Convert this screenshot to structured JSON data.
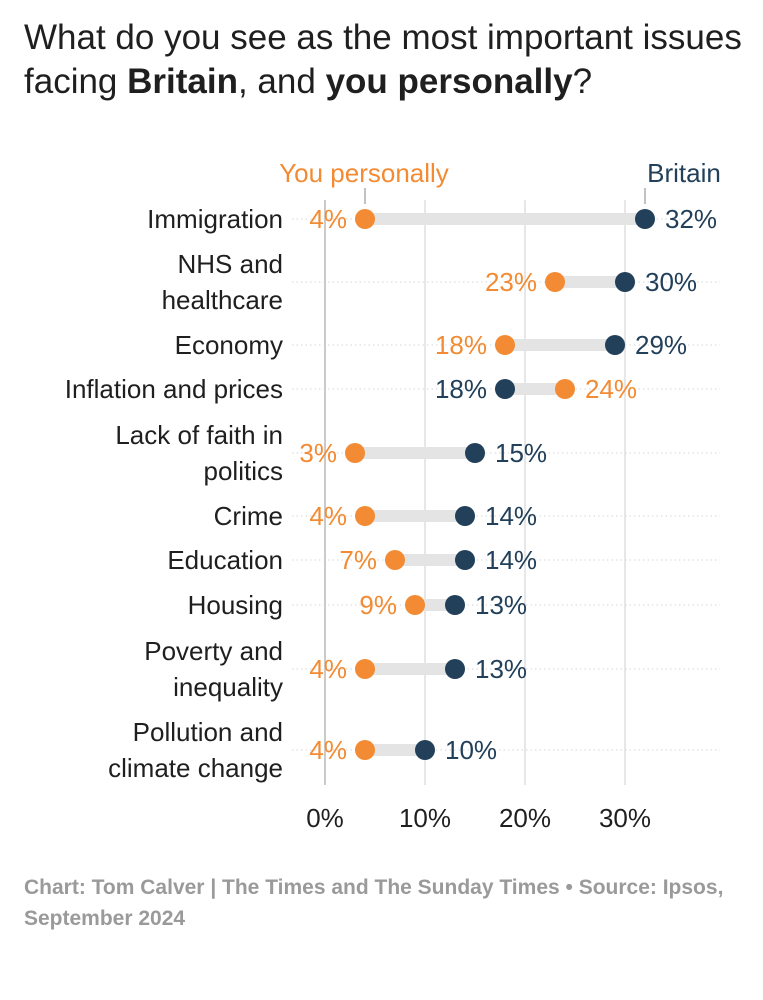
{
  "title": {
    "part1": "What do you see as the most important issues facing ",
    "britain": "Britain",
    "part2": ", and ",
    "personally": "you personally",
    "part3": "?"
  },
  "footer": "Chart: Tom Calver | The Times and The Sunday Times • Source: Ipsos, September 2024",
  "colors": {
    "personal": "#f28b33",
    "britain": "#22405a",
    "bar": "#e4e4e4",
    "grid": "#cfcfcf"
  },
  "chart_data": {
    "type": "dot-range",
    "title": "What do you see as the most important issues facing Britain, and you personally?",
    "xlim": [
      0,
      35
    ],
    "xticks": [
      0,
      10,
      20,
      30
    ],
    "xtick_labels": [
      "0%",
      "10%",
      "20%",
      "30%"
    ],
    "legend": {
      "personal": "You personally",
      "britain": "Britain"
    },
    "categories": [
      [
        "Immigration"
      ],
      [
        "NHS and",
        "healthcare"
      ],
      [
        "Economy"
      ],
      [
        "Inflation and prices"
      ],
      [
        "Lack of faith in",
        "politics"
      ],
      [
        "Crime"
      ],
      [
        "Education"
      ],
      [
        "Housing"
      ],
      [
        "Poverty and",
        "inequality"
      ],
      [
        "Pollution and",
        "climate change"
      ]
    ],
    "series": [
      {
        "name": "You personally",
        "values": [
          4,
          23,
          18,
          24,
          3,
          4,
          7,
          9,
          4,
          4
        ]
      },
      {
        "name": "Britain",
        "values": [
          32,
          30,
          29,
          18,
          15,
          14,
          14,
          13,
          13,
          10
        ]
      }
    ],
    "value_labels": {
      "personal": [
        "4%",
        "23%",
        "18%",
        "24%",
        "3%",
        "4%",
        "7%",
        "9%",
        "4%",
        "4%"
      ],
      "britain": [
        "32%",
        "30%",
        "29%",
        "18%",
        "15%",
        "14%",
        "14%",
        "13%",
        "13%",
        "10%"
      ]
    }
  }
}
